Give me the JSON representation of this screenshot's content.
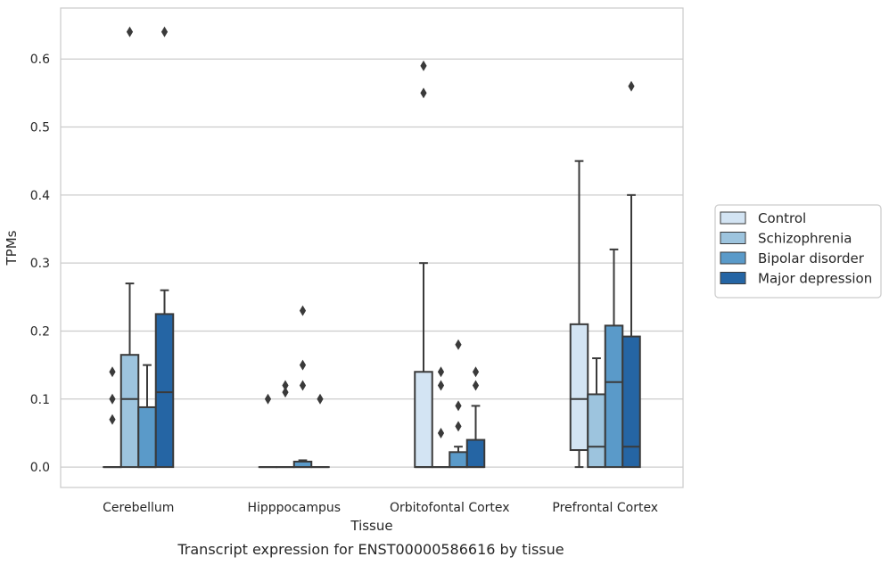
{
  "caption": "Transcript expression for ENST00000586616 by tissue",
  "chart_data": {
    "type": "box",
    "xlabel": "Tissue",
    "ylabel": "TPMs",
    "ylim": [
      -0.03,
      0.675
    ],
    "yticks": [
      0.0,
      0.1,
      0.2,
      0.3,
      0.4,
      0.5,
      0.6
    ],
    "ytick_labels": [
      "0.0",
      "0.1",
      "0.2",
      "0.3",
      "0.4",
      "0.5",
      "0.6"
    ],
    "grid": "horizontal",
    "legend_position": "right",
    "categories": [
      "Cerebellum",
      "Hipppocampus",
      "Orbitofontal Cortex",
      "Prefrontal Cortex"
    ],
    "series": [
      {
        "name": "Control",
        "color": "#d3e4f3",
        "boxes": [
          {
            "q1": 0.0,
            "median": 0.0,
            "q3": 0.0,
            "whislo": 0.0,
            "whishi": 0.0,
            "fliers": [
              0.14,
              0.1,
              0.07
            ]
          },
          {
            "q1": 0.0,
            "median": 0.0,
            "q3": 0.0,
            "whislo": 0.0,
            "whishi": 0.0,
            "fliers": [
              0.1
            ]
          },
          {
            "q1": 0.0,
            "median": 0.0,
            "q3": 0.14,
            "whislo": 0.0,
            "whishi": 0.3,
            "fliers": [
              0.59,
              0.55
            ]
          },
          {
            "q1": 0.025,
            "median": 0.1,
            "q3": 0.21,
            "whislo": 0.0,
            "whishi": 0.45,
            "fliers": []
          }
        ]
      },
      {
        "name": "Schizophrenia",
        "color": "#9dc4de",
        "boxes": [
          {
            "q1": 0.0,
            "median": 0.1,
            "q3": 0.165,
            "whislo": 0.0,
            "whishi": 0.27,
            "fliers": [
              0.64
            ]
          },
          {
            "q1": 0.0,
            "median": 0.0,
            "q3": 0.0,
            "whislo": 0.0,
            "whishi": 0.0,
            "fliers": [
              0.12,
              0.11
            ]
          },
          {
            "q1": 0.0,
            "median": 0.0,
            "q3": 0.0,
            "whislo": 0.0,
            "whishi": 0.0,
            "fliers": [
              0.14,
              0.12,
              0.05
            ]
          },
          {
            "q1": 0.0,
            "median": 0.03,
            "q3": 0.107,
            "whislo": 0.0,
            "whishi": 0.16,
            "fliers": []
          }
        ]
      },
      {
        "name": "Bipolar disorder",
        "color": "#5a9ac9",
        "boxes": [
          {
            "q1": 0.0,
            "median": 0.0,
            "q3": 0.088,
            "whislo": 0.0,
            "whishi": 0.15,
            "fliers": []
          },
          {
            "q1": 0.0,
            "median": 0.0,
            "q3": 0.008,
            "whislo": 0.0,
            "whishi": 0.01,
            "fliers": [
              0.23,
              0.15,
              0.12
            ]
          },
          {
            "q1": 0.0,
            "median": 0.0,
            "q3": 0.022,
            "whislo": 0.0,
            "whishi": 0.03,
            "fliers": [
              0.18,
              0.09,
              0.06
            ]
          },
          {
            "q1": 0.0,
            "median": 0.125,
            "q3": 0.208,
            "whislo": 0.0,
            "whishi": 0.32,
            "fliers": []
          }
        ]
      },
      {
        "name": "Major depression",
        "color": "#2565a4",
        "boxes": [
          {
            "q1": 0.0,
            "median": 0.11,
            "q3": 0.225,
            "whislo": 0.0,
            "whishi": 0.26,
            "fliers": [
              0.64
            ]
          },
          {
            "q1": 0.0,
            "median": 0.0,
            "q3": 0.0,
            "whislo": 0.0,
            "whishi": 0.0,
            "fliers": [
              0.1
            ]
          },
          {
            "q1": 0.0,
            "median": 0.0,
            "q3": 0.04,
            "whislo": 0.0,
            "whishi": 0.09,
            "fliers": [
              0.14,
              0.12
            ]
          },
          {
            "q1": 0.0,
            "median": 0.03,
            "q3": 0.192,
            "whislo": 0.0,
            "whishi": 0.4,
            "fliers": [
              0.56
            ]
          }
        ]
      }
    ]
  }
}
